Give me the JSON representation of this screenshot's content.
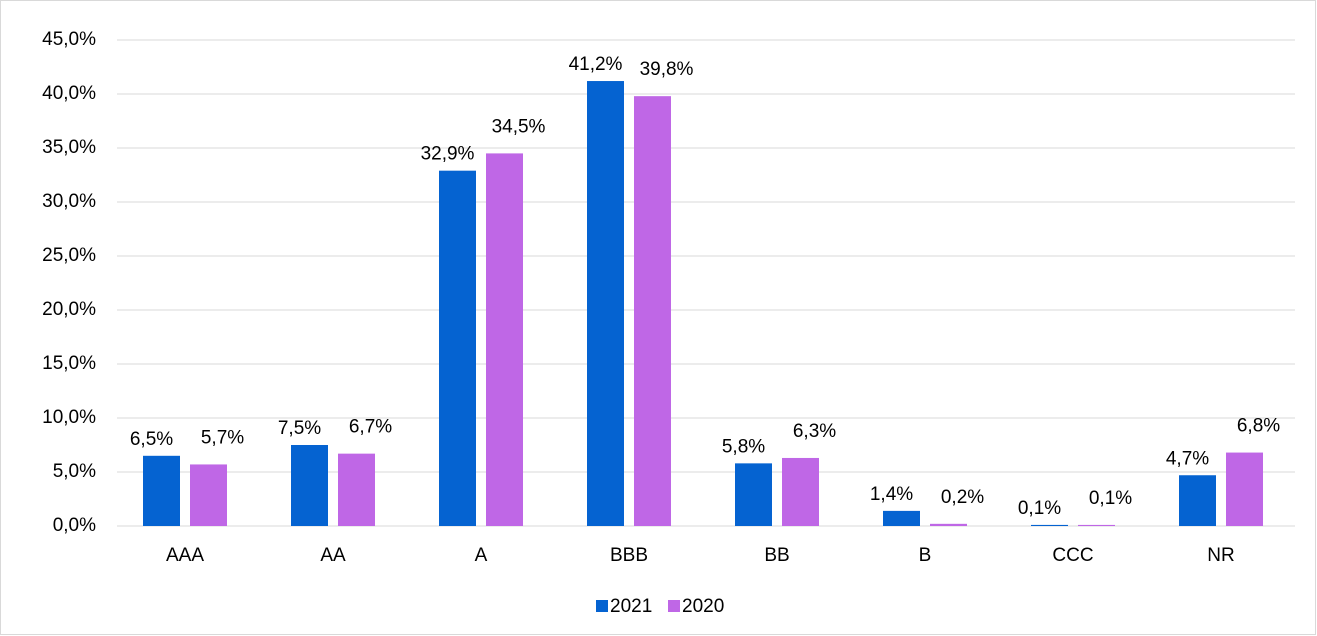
{
  "chart_data": {
    "type": "bar",
    "categories": [
      "AAA",
      "AA",
      "A",
      "BBB",
      "BB",
      "B",
      "CCC",
      "NR"
    ],
    "series": [
      {
        "name": "2021",
        "color": "#0563d1",
        "values": [
          6.5,
          7.5,
          32.9,
          41.2,
          5.8,
          1.4,
          0.1,
          4.7
        ],
        "value_labels": [
          "6,5%",
          "7,5%",
          "32,9%",
          "41,2%",
          "5,8%",
          "1,4%",
          "0,1%",
          "4,7%"
        ]
      },
      {
        "name": "2020",
        "color": "#bf67e6",
        "values": [
          5.7,
          6.7,
          34.5,
          39.8,
          6.3,
          0.2,
          0.1,
          6.8
        ],
        "value_labels": [
          "5,7%",
          "6,7%",
          "34,5%",
          "39,8%",
          "6,3%",
          "0,2%",
          "0,1%",
          "6,8%"
        ]
      }
    ],
    "ylim": [
      0,
      45
    ],
    "yticks": [
      {
        "value": 0,
        "label": "0,0%"
      },
      {
        "value": 5,
        "label": "5,0%"
      },
      {
        "value": 10,
        "label": "10,0%"
      },
      {
        "value": 15,
        "label": "15,0%"
      },
      {
        "value": 20,
        "label": "20,0%"
      },
      {
        "value": 25,
        "label": "25,0%"
      },
      {
        "value": 30,
        "label": "30,0%"
      },
      {
        "value": 35,
        "label": "35,0%"
      },
      {
        "value": 40,
        "label": "40,0%"
      },
      {
        "value": 45,
        "label": "45,0%"
      }
    ],
    "grid": true,
    "legend": "bottom"
  }
}
